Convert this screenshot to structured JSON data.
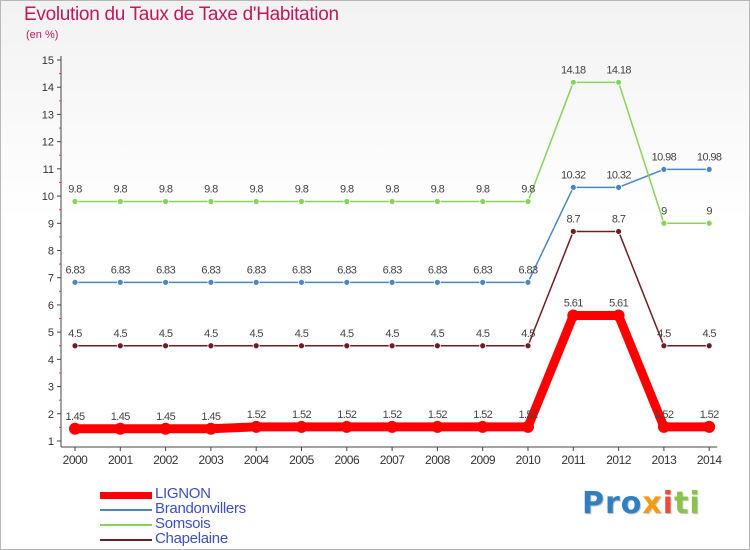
{
  "title": "Evolution du Taux de Taxe d'Habitation",
  "unit": "(en %)",
  "logo": {
    "p1": "Pro",
    "p2": "x",
    "p3": "i",
    "p4": "ti"
  },
  "chart_data": {
    "type": "line",
    "title": "Evolution du Taux de Taxe d'Habitation",
    "ylabel": "(en %)",
    "x": [
      "2000",
      "2001",
      "2002",
      "2003",
      "2004",
      "2005",
      "2006",
      "2007",
      "2008",
      "2009",
      "2010",
      "2011",
      "2012",
      "2013",
      "2014"
    ],
    "ylim": [
      1,
      15
    ],
    "yticks": [
      1,
      2,
      3,
      4,
      5,
      6,
      7,
      8,
      9,
      10,
      11,
      12,
      13,
      14,
      15
    ],
    "grid": false,
    "legend_position": "bottom-left",
    "series": [
      {
        "name": "LIGNON",
        "color": "#ff0000",
        "bold": true,
        "values": [
          1.45,
          1.45,
          1.45,
          1.45,
          1.52,
          1.52,
          1.52,
          1.52,
          1.52,
          1.52,
          1.52,
          5.61,
          5.61,
          1.52,
          1.52
        ],
        "labels": [
          "1.45",
          "1.45",
          "1.45",
          "1.45",
          "1.52",
          "1.52",
          "1.52",
          "1.52",
          "1.52",
          "1.52",
          "1.52",
          "5.61",
          "5.61",
          "1.52",
          "1.52"
        ]
      },
      {
        "name": "Brandonvillers",
        "color": "#4a86c5",
        "values": [
          6.83,
          6.83,
          6.83,
          6.83,
          6.83,
          6.83,
          6.83,
          6.83,
          6.83,
          6.83,
          6.83,
          10.32,
          10.32,
          10.98,
          10.98
        ],
        "labels": [
          "6.83",
          "6.83",
          "6.83",
          "6.83",
          "6.83",
          "6.83",
          "6.83",
          "6.83",
          "6.83",
          "6.83",
          "6.83",
          "10.32",
          "10.32",
          "10.98",
          "10.98"
        ]
      },
      {
        "name": "Somsois",
        "color": "#86d45a",
        "values": [
          9.8,
          9.8,
          9.8,
          9.8,
          9.8,
          9.8,
          9.8,
          9.8,
          9.8,
          9.8,
          9.8,
          14.18,
          14.18,
          9,
          9
        ],
        "labels": [
          "9.8",
          "9.8",
          "9.8",
          "9.8",
          "9.8",
          "9.8",
          "9.8",
          "9.8",
          "9.8",
          "9.8",
          "9.8",
          "14.18",
          "14.18",
          "9",
          "9"
        ]
      },
      {
        "name": "Chapelaine",
        "color": "#6b1f24",
        "values": [
          4.5,
          4.5,
          4.5,
          4.5,
          4.5,
          4.5,
          4.5,
          4.5,
          4.5,
          4.5,
          4.5,
          8.7,
          8.7,
          4.5,
          4.5
        ],
        "labels": [
          "4.5",
          "4.5",
          "4.5",
          "4.5",
          "4.5",
          "4.5",
          "4.5",
          "4.5",
          "4.5",
          "4.5",
          "4.5",
          "8.7",
          "8.7",
          "4.5",
          "4.5"
        ]
      }
    ]
  }
}
